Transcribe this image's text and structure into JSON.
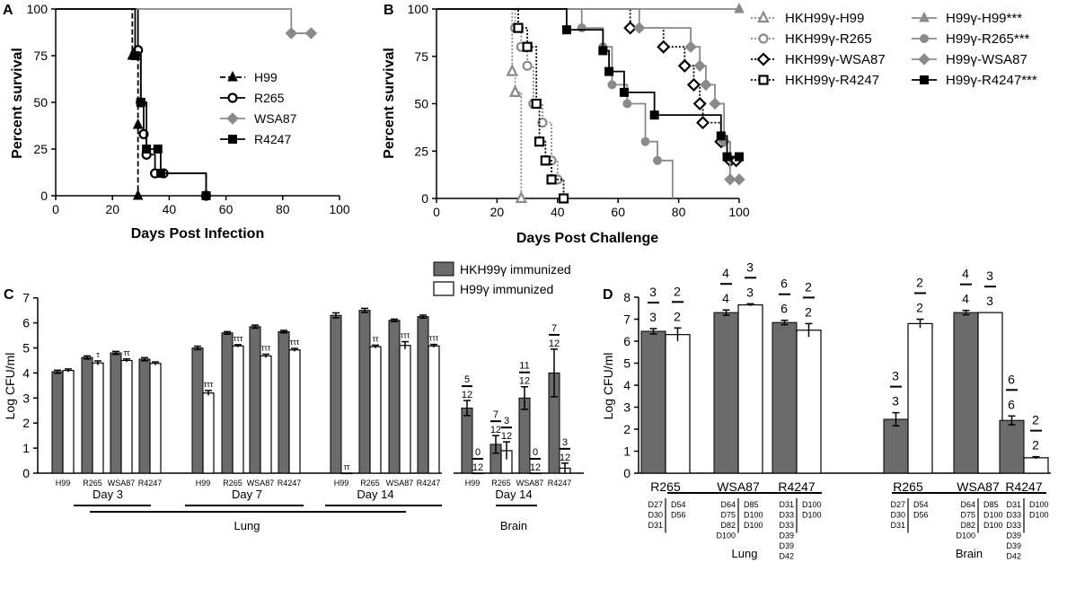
{
  "colors": {
    "gray": "#8a8a8a",
    "dark": "#6b6b6b",
    "black": "#000000",
    "white": "#ffffff"
  },
  "chart_data": [
    {
      "panel": "A",
      "type": "line",
      "title": "",
      "xlabel": "Days Post Infection",
      "ylabel": "Percent survival",
      "xlim": [
        0,
        100
      ],
      "ylim": [
        0,
        100
      ],
      "xticks": [
        "0",
        "20",
        "40",
        "60",
        "80",
        "100"
      ],
      "yticks": [
        "0",
        "25",
        "50",
        "75",
        "100"
      ],
      "series": [
        {
          "name": "H99",
          "marker": "triangle",
          "color": "#000000",
          "dash": "dashed",
          "x": [
            0,
            27,
            28,
            29,
            29
          ],
          "y": [
            100,
            75,
            75,
            38,
            0
          ],
          "mx": [
            27,
            28,
            29,
            29
          ],
          "my": [
            75,
            75,
            38,
            0
          ]
        },
        {
          "name": "R265",
          "marker": "circle-open",
          "color": "#000000",
          "dash": "solid",
          "x": [
            0,
            29,
            30,
            31,
            32,
            35,
            38,
            53
          ],
          "y": [
            100,
            78,
            50,
            33,
            22,
            12,
            12,
            0
          ],
          "mx": [
            29,
            30,
            31,
            32,
            35,
            38,
            53
          ],
          "my": [
            78,
            50,
            33,
            22,
            12,
            12,
            0
          ]
        },
        {
          "name": "WSA87",
          "marker": "diamond",
          "color": "#8a8a8a",
          "dash": "solid",
          "x": [
            0,
            83,
            90
          ],
          "y": [
            100,
            87,
            87
          ],
          "mx": [
            83,
            90
          ],
          "my": [
            87,
            87
          ]
        },
        {
          "name": "R4247",
          "marker": "square",
          "color": "#000000",
          "dash": "solid",
          "x": [
            0,
            28,
            30,
            32,
            36,
            37,
            53
          ],
          "y": [
            100,
            75,
            50,
            25,
            25,
            12,
            0
          ],
          "mx": [
            28,
            30,
            32,
            36,
            37,
            53
          ],
          "my": [
            75,
            50,
            25,
            25,
            12,
            0
          ]
        }
      ]
    },
    {
      "panel": "B",
      "type": "line",
      "title": "",
      "xlabel": "Days Post Challenge",
      "ylabel": "Percent survival",
      "xlim": [
        0,
        100
      ],
      "ylim": [
        0,
        100
      ],
      "xticks": [
        "0",
        "20",
        "40",
        "60",
        "80",
        "100"
      ],
      "yticks": [
        "0",
        "25",
        "50",
        "75",
        "100"
      ],
      "series": [
        {
          "name": "HKH99γ-H99",
          "marker": "triangle-open",
          "color": "#8a8a8a",
          "dash": "dotted",
          "x": [
            0,
            25,
            26,
            28
          ],
          "y": [
            100,
            67,
            56,
            0
          ],
          "mx": [
            25,
            26,
            28
          ],
          "my": [
            67,
            56,
            0
          ]
        },
        {
          "name": "HKH99γ-R265",
          "marker": "circle-open",
          "color": "#8a8a8a",
          "dash": "dotted",
          "x": [
            0,
            26,
            28,
            30,
            32,
            35,
            38,
            40,
            42
          ],
          "y": [
            100,
            90,
            80,
            70,
            50,
            40,
            20,
            10,
            0
          ],
          "mx": [
            26,
            28,
            30,
            32,
            35,
            38,
            40,
            42
          ],
          "my": [
            90,
            80,
            70,
            50,
            40,
            20,
            10,
            0
          ]
        },
        {
          "name": "HKH99γ-WSA87",
          "marker": "diamond-open",
          "color": "#000000",
          "dash": "dotted",
          "x": [
            0,
            64,
            75,
            82,
            85,
            87,
            88,
            94,
            97,
            99
          ],
          "y": [
            100,
            90,
            80,
            70,
            60,
            50,
            40,
            30,
            20,
            20
          ],
          "mx": [
            64,
            75,
            82,
            85,
            87,
            88,
            94,
            97,
            99
          ],
          "my": [
            90,
            80,
            70,
            60,
            50,
            40,
            30,
            20,
            20
          ]
        },
        {
          "name": "HKH99γ-R4247",
          "marker": "square-open",
          "color": "#000000",
          "dash": "dotted",
          "x": [
            0,
            27,
            30,
            33,
            34,
            36,
            38,
            42
          ],
          "y": [
            100,
            90,
            80,
            50,
            30,
            20,
            10,
            0
          ],
          "mx": [
            27,
            30,
            33,
            34,
            36,
            38,
            42
          ],
          "my": [
            90,
            80,
            50,
            30,
            20,
            10,
            0
          ]
        },
        {
          "name": "H99γ-H99***",
          "marker": "triangle",
          "color": "#8a8a8a",
          "dash": "solid",
          "x": [
            0,
            100
          ],
          "y": [
            100,
            100
          ],
          "mx": [
            100
          ],
          "my": [
            100
          ]
        },
        {
          "name": "H99γ-R265***",
          "marker": "circle",
          "color": "#8a8a8a",
          "dash": "solid",
          "x": [
            0,
            48,
            55,
            58,
            63,
            69,
            73,
            78
          ],
          "y": [
            100,
            90,
            80,
            60,
            50,
            30,
            20,
            0
          ],
          "mx": [
            48,
            55,
            58,
            63,
            69,
            73
          ],
          "my": [
            90,
            80,
            60,
            50,
            30,
            20
          ]
        },
        {
          "name": "H99γ-WSA87",
          "marker": "diamond",
          "color": "#8a8a8a",
          "dash": "solid",
          "x": [
            0,
            67,
            84,
            87,
            89,
            92,
            95,
            97,
            100
          ],
          "y": [
            100,
            90,
            80,
            70,
            60,
            50,
            30,
            10,
            10
          ],
          "mx": [
            67,
            84,
            87,
            89,
            92,
            95,
            97,
            100
          ],
          "my": [
            90,
            80,
            70,
            60,
            50,
            30,
            10,
            10
          ]
        },
        {
          "name": "H99γ-R4247***",
          "marker": "square",
          "color": "#000000",
          "dash": "solid",
          "x": [
            0,
            43,
            55,
            57,
            62,
            72,
            94,
            96,
            100
          ],
          "y": [
            100,
            89,
            78,
            67,
            56,
            44,
            33,
            22,
            22
          ],
          "mx": [
            43,
            55,
            57,
            62,
            72,
            94,
            96,
            100
          ],
          "my": [
            89,
            78,
            67,
            56,
            44,
            33,
            22,
            22
          ]
        }
      ]
    },
    {
      "panel": "C",
      "type": "bar",
      "ylabel": "Log CFU/ml",
      "ylim": [
        0,
        7
      ],
      "yticks": [
        "0",
        "1",
        "2",
        "3",
        "4",
        "5",
        "6",
        "7"
      ],
      "legend": [
        "HKH99γ immunized",
        "H99γ immunized"
      ],
      "day_labels": [
        "Day 3",
        "Day 7",
        "Day 14",
        "Day 14"
      ],
      "organ_labels": [
        "Lung",
        "Brain"
      ],
      "groups": [
        {
          "label": "H99",
          "day": 0,
          "gray": 4.05,
          "gerr": 0.06,
          "white": 4.1,
          "werr": 0.06,
          "wsig": ""
        },
        {
          "label": "R265",
          "day": 0,
          "gray": 4.62,
          "gerr": 0.06,
          "white": 4.4,
          "werr": 0.08,
          "wsig": "τ"
        },
        {
          "label": "WSA87",
          "day": 0,
          "gray": 4.8,
          "gerr": 0.06,
          "white": 4.5,
          "werr": 0.06,
          "wsig": "ττ"
        },
        {
          "label": "R4247",
          "day": 0,
          "gray": 4.55,
          "gerr": 0.06,
          "white": 4.38,
          "werr": 0.06,
          "wsig": ""
        },
        {
          "label": "H99",
          "day": 1,
          "gray": 5.0,
          "gerr": 0.07,
          "white": 3.2,
          "werr": 0.1,
          "wsig": "τττ"
        },
        {
          "label": "R265",
          "day": 1,
          "gray": 5.6,
          "gerr": 0.05,
          "white": 5.08,
          "werr": 0.05,
          "wsig": "τττ"
        },
        {
          "label": "WSA87",
          "day": 1,
          "gray": 5.85,
          "gerr": 0.06,
          "white": 4.68,
          "werr": 0.07,
          "wsig": "τττ"
        },
        {
          "label": "R4247",
          "day": 1,
          "gray": 5.65,
          "gerr": 0.05,
          "white": 4.92,
          "werr": 0.06,
          "wsig": "τττ"
        },
        {
          "label": "H99",
          "day": 2,
          "gray": 6.3,
          "gerr": 0.1,
          "white": 0,
          "werr": 0,
          "wsig": "ττ"
        },
        {
          "label": "R265",
          "day": 2,
          "gray": 6.5,
          "gerr": 0.08,
          "white": 5.05,
          "werr": 0.06,
          "wsig": "ττ"
        },
        {
          "label": "WSA87",
          "day": 2,
          "gray": 6.1,
          "gerr": 0.05,
          "white": 5.1,
          "werr": 0.15,
          "wsig": "τττ"
        },
        {
          "label": "R4247",
          "day": 2,
          "gray": 6.25,
          "gerr": 0.06,
          "white": 5.08,
          "werr": 0.06,
          "wsig": "τττ"
        },
        {
          "label": "H99",
          "day": 3,
          "gray": 2.6,
          "gerr": 0.3,
          "gnum": "5",
          "gden": "12",
          "white": 0,
          "werr": 0,
          "wnum": "0",
          "wden": "12"
        },
        {
          "label": "R265",
          "day": 3,
          "gray": 1.15,
          "gerr": 0.35,
          "gnum": "7",
          "gden": "12",
          "white": 0.9,
          "werr": 0.35,
          "wnum": "3",
          "wden": "12"
        },
        {
          "label": "WSA87",
          "day": 3,
          "gray": 3.0,
          "gerr": 0.45,
          "gnum": "11",
          "gden": "12",
          "white": 0,
          "werr": 0,
          "wnum": "0",
          "wden": "12"
        },
        {
          "label": "R4247",
          "day": 3,
          "gray": 4.0,
          "gerr": 0.95,
          "gnum": "7",
          "gden": "12",
          "white": 0.2,
          "werr": 0.2,
          "wnum": "3",
          "wden": "12"
        }
      ]
    },
    {
      "panel": "D",
      "type": "bar",
      "ylabel": "Log CFU/ml",
      "ylim": [
        0,
        8
      ],
      "yticks": [
        "0",
        "1",
        "2",
        "3",
        "4",
        "5",
        "6",
        "7",
        "8"
      ],
      "organ_labels": [
        "Lung",
        "Brain"
      ],
      "groups": [
        {
          "label": "R265",
          "gray": 6.45,
          "gerr": 0.12,
          "gnum": "3",
          "gden": "3",
          "white": 6.3,
          "werr": 0.3,
          "wnum": "2",
          "wden": "2",
          "gdays": [
            "D27",
            "D30",
            "D31"
          ],
          "wdays": [
            "D54",
            "D56"
          ]
        },
        {
          "label": "WSA87",
          "gray": 7.3,
          "gerr": 0.12,
          "gnum": "4",
          "gden": "4",
          "white": 7.65,
          "werr": 0.05,
          "wnum": "3",
          "wden": "3",
          "gdays": [
            "D64",
            "D75",
            "D82",
            "D100"
          ],
          "wdays": [
            "D85",
            "D100",
            "D100"
          ]
        },
        {
          "label": "R4247",
          "gray": 6.85,
          "gerr": 0.1,
          "gnum": "6",
          "gden": "6",
          "white": 6.5,
          "werr": 0.3,
          "wnum": "2",
          "wden": "2",
          "gdays": [
            "D31",
            "D33",
            "D33",
            "D39",
            "D39",
            "D42"
          ],
          "wdays": [
            "D100",
            "D100"
          ]
        },
        {
          "label": "R265",
          "gray": 2.45,
          "gerr": 0.3,
          "gnum": "3",
          "gden": "3",
          "white": 6.8,
          "werr": 0.2,
          "wnum": "2",
          "wden": "2",
          "gdays": [
            "D27",
            "D30",
            "D31"
          ],
          "wdays": [
            "D54",
            "D56"
          ]
        },
        {
          "label": "WSA87",
          "gray": 7.3,
          "gerr": 0.1,
          "gnum": "4",
          "gden": "4",
          "white": 7.3,
          "werr": 0.0,
          "wnum": "3",
          "wden": "3",
          "gdays": [
            "D64",
            "D75",
            "D82",
            "D100"
          ],
          "wdays": [
            "D85",
            "D100",
            "D100"
          ]
        },
        {
          "label": "R4247",
          "gray": 2.4,
          "gerr": 0.2,
          "gnum": "6",
          "gden": "6",
          "white": 0.7,
          "werr": 0.05,
          "wnum": "2",
          "wden": "2",
          "gdays": [
            "D31",
            "D33",
            "D33",
            "D39",
            "D39",
            "D42"
          ],
          "wdays": [
            "D100",
            "D100"
          ]
        }
      ]
    }
  ]
}
